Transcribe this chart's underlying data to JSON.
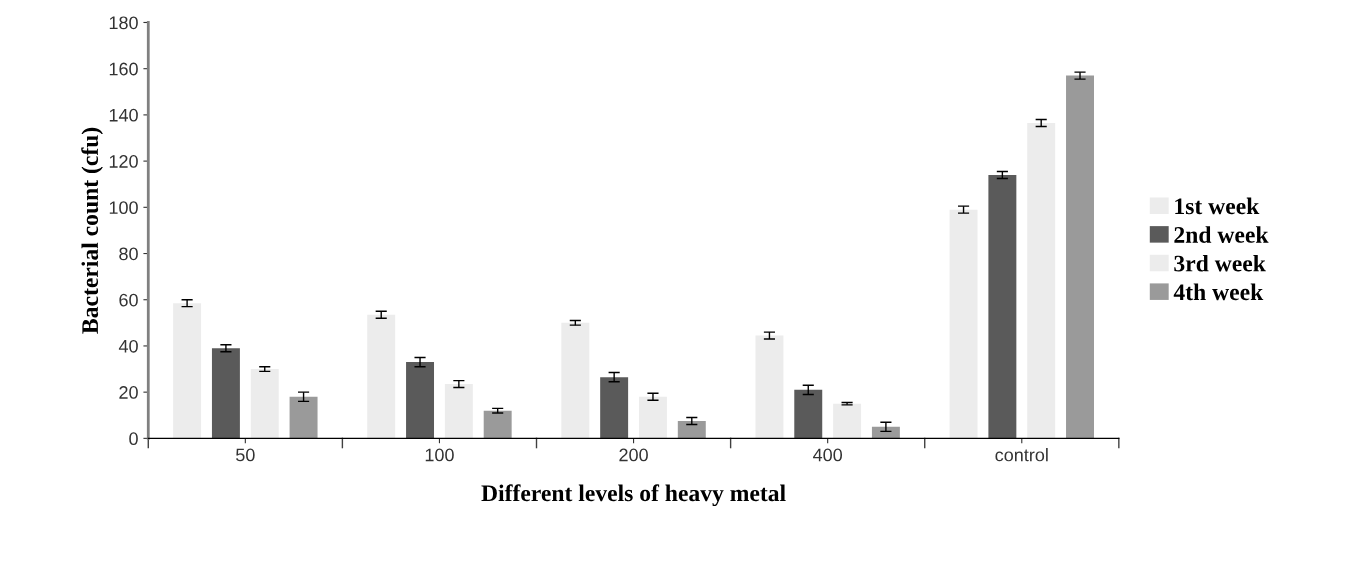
{
  "chart_data": {
    "type": "bar",
    "xlabel": "Different levels of heavy metal",
    "ylabel": "Bacterial count (cfu)",
    "categories": [
      "50",
      "100",
      "200",
      "400",
      "control"
    ],
    "series": [
      {
        "name": "1st week",
        "color": "#ececec",
        "values": [
          58.5,
          53.5,
          50,
          44.5,
          99
        ],
        "errors": [
          1.5,
          1.5,
          1,
          1.5,
          1.5
        ]
      },
      {
        "name": "2nd week",
        "color": "#5a5a5a",
        "values": [
          39,
          33,
          26.5,
          21,
          114
        ],
        "errors": [
          1.5,
          2,
          2,
          2,
          1.5
        ]
      },
      {
        "name": "3rd week",
        "color": "#ececec",
        "values": [
          30,
          23.5,
          18,
          15,
          136.5
        ],
        "errors": [
          1,
          1.5,
          1.5,
          0.5,
          1.5
        ]
      },
      {
        "name": "4th week",
        "color": "#9a9a9a",
        "values": [
          18,
          12,
          7.5,
          5,
          157
        ],
        "errors": [
          2,
          1,
          1.5,
          2,
          1.5
        ]
      }
    ],
    "ylim": [
      0,
      180
    ],
    "yticks": [
      0,
      20,
      40,
      60,
      80,
      100,
      120,
      140,
      160,
      180
    ],
    "grid": false,
    "legend": "right"
  }
}
